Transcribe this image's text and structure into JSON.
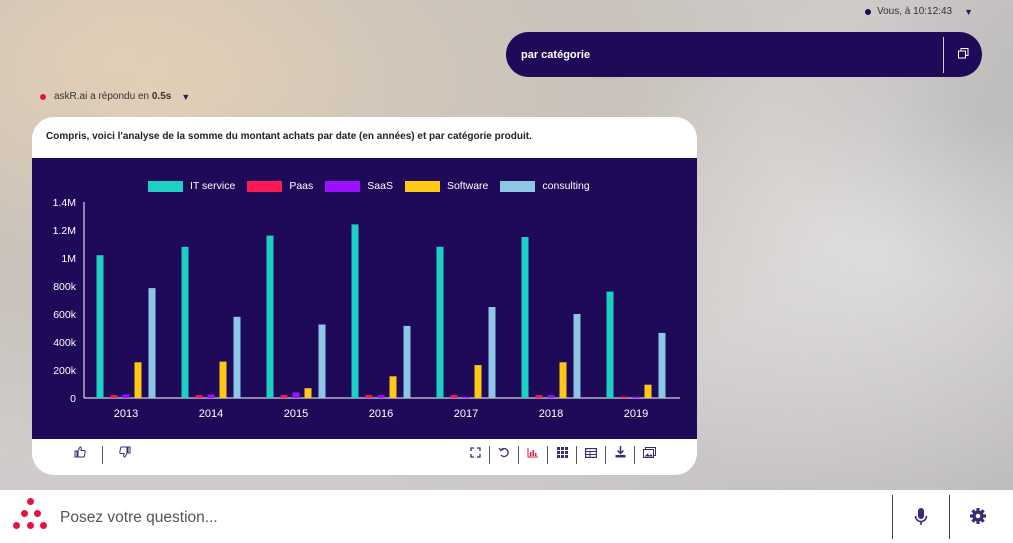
{
  "user_message": {
    "meta": "Vous, à 10:12:43",
    "text": "par catégorie",
    "copy_icon": "copy-icon"
  },
  "bot_message": {
    "name_prefix": "askR.ai a répondu en",
    "response_time": "0.5s",
    "summary": "Compris, voici l'analyse de la somme du montant achats par date (en années) et par catégorie produit."
  },
  "chart_data": {
    "type": "bar",
    "categories": [
      "2013",
      "2014",
      "2015",
      "2016",
      "2017",
      "2018",
      "2019"
    ],
    "series": [
      {
        "name": "IT service",
        "color": "#1ed0c4",
        "values": [
          1020000,
          1080000,
          1160000,
          1240000,
          1080000,
          1150000,
          760000
        ]
      },
      {
        "name": "Paas",
        "color": "#ff1a57",
        "values": [
          20000,
          20000,
          20000,
          20000,
          20000,
          20000,
          10000
        ]
      },
      {
        "name": "SaaS",
        "color": "#9b11ff",
        "values": [
          25000,
          25000,
          40000,
          20000,
          10000,
          20000,
          10000
        ]
      },
      {
        "name": "Software",
        "color": "#ffc815",
        "values": [
          255000,
          260000,
          70000,
          155000,
          235000,
          255000,
          95000
        ]
      },
      {
        "name": "consulting",
        "color": "#8ec6e6",
        "values": [
          785000,
          580000,
          525000,
          515000,
          650000,
          600000,
          465000
        ]
      }
    ],
    "yticks": [
      "0",
      "200k",
      "400k",
      "600k",
      "800k",
      "1M",
      "1.2M",
      "1.4M"
    ],
    "ylim": [
      0,
      1400000
    ],
    "legend_position": "top",
    "grid": false
  },
  "toolbar": {
    "like": "thumbs-up-icon",
    "dislike": "thumbs-down-icon",
    "right": [
      "fullscreen-icon",
      "undo-icon",
      "bar-chart-icon",
      "grid-icon",
      "table-icon",
      "download-icon",
      "gallery-icon"
    ]
  },
  "input": {
    "placeholder": "Posez votre question..."
  },
  "colors": {
    "primary": "#1f0a5a",
    "accent": "#e8123f"
  }
}
